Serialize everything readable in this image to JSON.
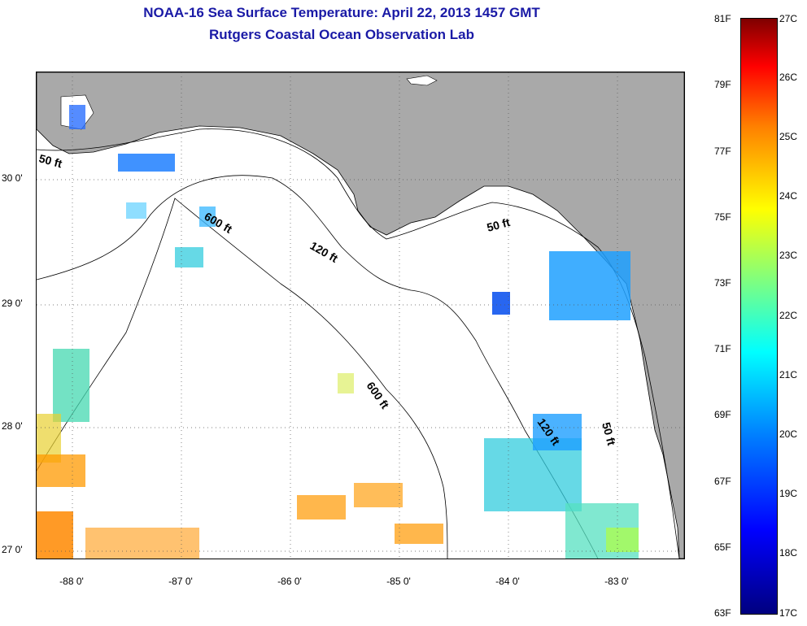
{
  "title": {
    "line1": "NOAA-16 Sea Surface Temperature:  April 22, 2013 1457 GMT",
    "line2": "Rutgers Coastal Ocean Observation Lab"
  },
  "map": {
    "latitude_labels": [
      "30 0'",
      "29 0'",
      "28 0'",
      "27 0'"
    ],
    "longitude_labels": [
      "-88 0'",
      "-87 0'",
      "-86 0'",
      "-85 0'",
      "-84 0'",
      "-83 0'"
    ],
    "contour_labels": [
      "50 ft",
      "600 ft",
      "120 ft",
      "50 ft",
      "600 ft",
      "120 ft",
      "50 ft"
    ],
    "land_color": "#a9a9a9",
    "water_color": "#ffffff"
  },
  "colorbar": {
    "fahrenheit_labels": [
      "81F",
      "79F",
      "77F",
      "75F",
      "73F",
      "71F",
      "69F",
      "67F",
      "65F",
      "63F"
    ],
    "celsius_labels": [
      "27C",
      "26C",
      "25C",
      "24C",
      "23C",
      "22C",
      "21C",
      "20C",
      "19C",
      "18C",
      "17C"
    ],
    "colors": [
      "#00007f",
      "#0000ff",
      "#007fff",
      "#00ffff",
      "#7fff7f",
      "#ffff00",
      "#ff7f00",
      "#ff0000",
      "#7f0000"
    ]
  }
}
